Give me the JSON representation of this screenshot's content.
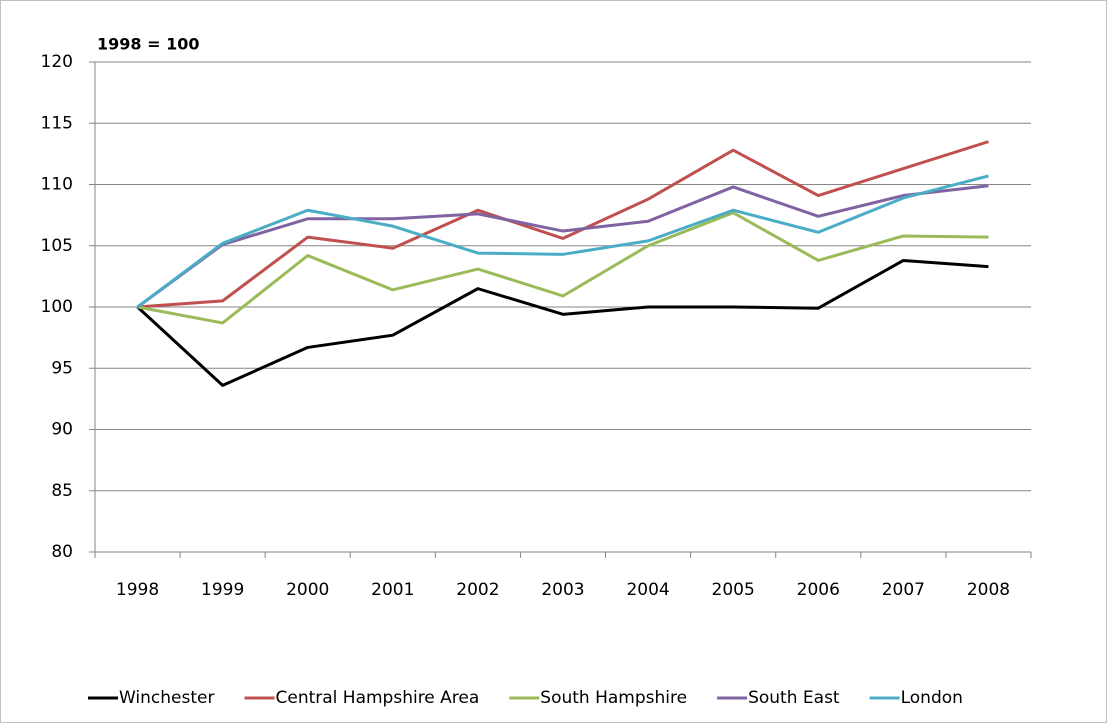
{
  "chart_data": {
    "type": "line",
    "annotation": "1998 = 100",
    "categories": [
      "1998",
      "1999",
      "2000",
      "2001",
      "2002",
      "2003",
      "2004",
      "2005",
      "2006",
      "2007",
      "2008"
    ],
    "series": [
      {
        "name": "Winchester",
        "color": "#000000",
        "values": [
          100,
          93.6,
          96.7,
          97.7,
          101.5,
          99.4,
          100,
          100,
          99.9,
          103.8,
          103.3
        ]
      },
      {
        "name": "Central Hampshire  Area",
        "color": "#c0504d",
        "values": [
          100,
          100.5,
          105.7,
          104.8,
          107.9,
          105.6,
          108.8,
          112.8,
          109.1,
          111.3,
          113.5
        ]
      },
      {
        "name": "South Hampshire",
        "color": "#9bbb59",
        "values": [
          100,
          98.7,
          104.2,
          101.4,
          103.1,
          100.9,
          105,
          107.7,
          103.8,
          105.8,
          105.7
        ]
      },
      {
        "name": "South East",
        "color": "#8064a2",
        "values": [
          100,
          105.1,
          107.2,
          107.2,
          107.6,
          106.2,
          107,
          109.8,
          107.4,
          109.1,
          109.9
        ]
      },
      {
        "name": "London",
        "color": "#4bacc6",
        "values": [
          100,
          105.2,
          107.9,
          106.6,
          104.4,
          104.3,
          105.4,
          107.9,
          106.1,
          108.9,
          110.7
        ]
      }
    ],
    "ylim": [
      80,
      120
    ],
    "yticks": [
      80,
      85,
      90,
      95,
      100,
      105,
      110,
      115,
      120
    ],
    "grid": true,
    "legend": "bottom"
  }
}
